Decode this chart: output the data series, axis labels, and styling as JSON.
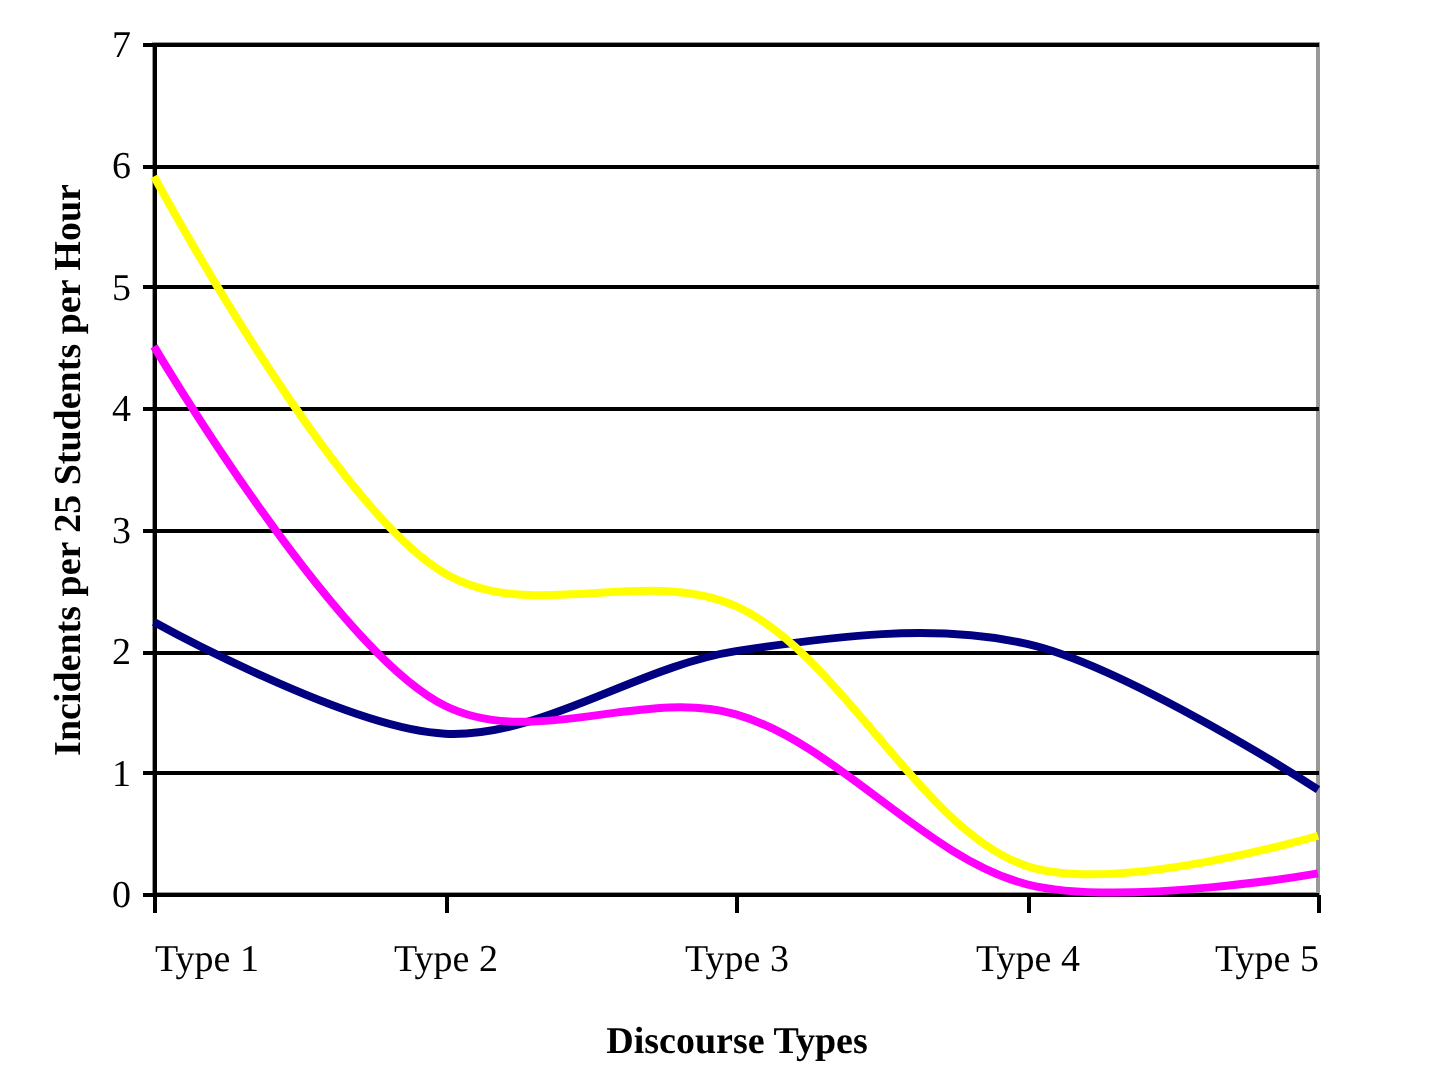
{
  "chart_data": {
    "type": "line",
    "xlabel": "Discourse Types",
    "ylabel": "Incidents per 25 Students per Hour",
    "categories": [
      "Type 1",
      "Type 2",
      "Type 3",
      "Type 4",
      "Type 5"
    ],
    "series": [
      {
        "color": "#000080",
        "values": [
          2.24,
          1.32,
          2.0,
          2.06,
          0.86
        ]
      },
      {
        "color": "#ffff00",
        "values": [
          5.91,
          2.64,
          2.37,
          0.23,
          0.48
        ]
      },
      {
        "color": "#ff00ff",
        "values": [
          4.51,
          1.55,
          1.48,
          0.08,
          0.17
        ]
      }
    ],
    "ylim": [
      0,
      7
    ],
    "yticks": [
      0,
      1,
      2,
      3,
      4,
      5,
      6,
      7
    ],
    "grid": "y",
    "marker": "none",
    "line_style": "solid"
  }
}
